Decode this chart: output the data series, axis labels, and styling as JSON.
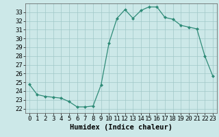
{
  "x": [
    0,
    1,
    2,
    3,
    4,
    5,
    6,
    7,
    8,
    9,
    10,
    11,
    12,
    13,
    14,
    15,
    16,
    17,
    18,
    19,
    20,
    21,
    22,
    23
  ],
  "y": [
    24.8,
    23.6,
    23.4,
    23.3,
    23.2,
    22.8,
    22.2,
    22.2,
    22.3,
    24.7,
    29.5,
    32.3,
    33.3,
    32.3,
    33.2,
    33.6,
    33.6,
    32.4,
    32.2,
    31.5,
    31.3,
    31.1,
    28.0,
    25.7
  ],
  "line_color": "#2e8b77",
  "marker_color": "#2e8b77",
  "bg_color": "#cce8e8",
  "grid_color": "#a0c8c8",
  "xlabel": "Humidex (Indice chaleur)",
  "ylim": [
    21.5,
    34.0
  ],
  "xlim": [
    -0.5,
    23.5
  ],
  "yticks": [
    22,
    23,
    24,
    25,
    26,
    27,
    28,
    29,
    30,
    31,
    32,
    33
  ],
  "xticks": [
    0,
    1,
    2,
    3,
    4,
    5,
    6,
    7,
    8,
    9,
    10,
    11,
    12,
    13,
    14,
    15,
    16,
    17,
    18,
    19,
    20,
    21,
    22,
    23
  ],
  "xlabel_fontsize": 7.5,
  "tick_fontsize": 6.5,
  "spine_color": "#555555"
}
